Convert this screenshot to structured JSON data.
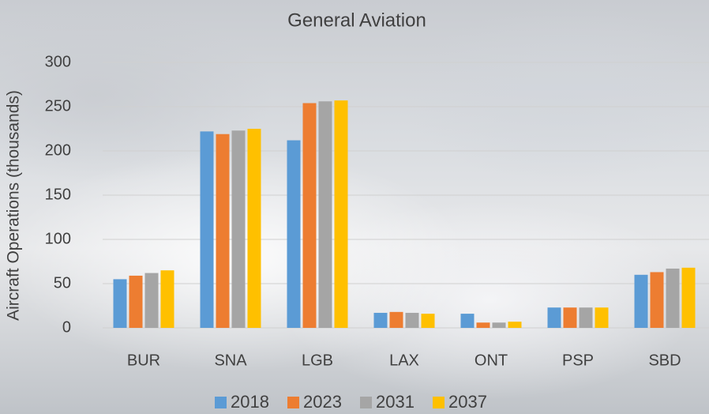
{
  "chart_data": {
    "type": "bar",
    "title": "General Aviation",
    "y_label": "Aircraft Operations (thousands)",
    "categories": [
      "BUR",
      "SNA",
      "LGB",
      "LAX",
      "ONT",
      "PSP",
      "SBD"
    ],
    "series": [
      {
        "name": "2018",
        "color": "#5b9bd5",
        "values": [
          55,
          222,
          212,
          17,
          16,
          23,
          60
        ]
      },
      {
        "name": "2023",
        "color": "#ed7d31",
        "values": [
          59,
          219,
          254,
          18,
          6,
          23,
          63
        ]
      },
      {
        "name": "2031",
        "color": "#a5a5a5",
        "values": [
          62,
          223,
          256,
          17,
          6,
          23,
          67
        ]
      },
      {
        "name": "2037",
        "color": "#ffc000",
        "values": [
          65,
          225,
          257,
          16,
          7,
          23,
          68
        ]
      }
    ],
    "ylim": [
      0,
      300
    ],
    "yticks": [
      0,
      50,
      100,
      150,
      200,
      250,
      300
    ],
    "grid": true,
    "legend": "bottom"
  }
}
